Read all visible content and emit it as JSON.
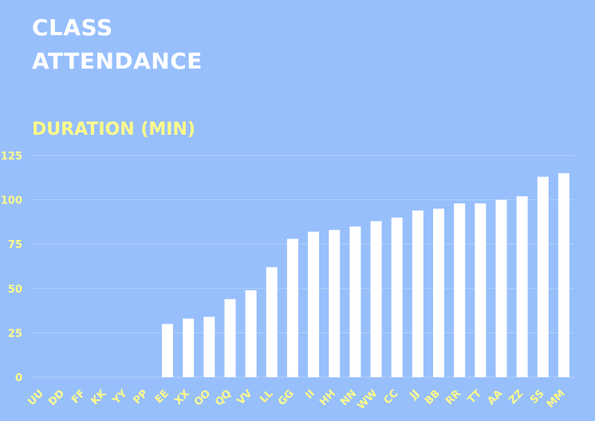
{
  "chart_data": {
    "type": "bar",
    "title_lines": [
      "CLASS",
      "ATTENDANCE"
    ],
    "ylabel": "DURATION (MIN)",
    "categories": [
      "UU",
      "DD",
      "FF",
      "KK",
      "YY",
      "PP",
      "EE",
      "XX",
      "OO",
      "QQ",
      "VV",
      "LL",
      "GG",
      "II",
      "HH",
      "NN",
      "WW",
      "CC",
      "JJ",
      "BB",
      "RR",
      "TT",
      "AA",
      "ZZ",
      "SS",
      "MM"
    ],
    "values": [
      0,
      0,
      0,
      0,
      0,
      0,
      30,
      33,
      34,
      44,
      49,
      62,
      78,
      82,
      83,
      85,
      88,
      90,
      94,
      95,
      98,
      98,
      100,
      102,
      113,
      115
    ],
    "ylim": [
      0,
      125
    ],
    "yticks": [
      0,
      25,
      50,
      75,
      100,
      125
    ],
    "grid": true,
    "colors": {
      "background": "#97bffc",
      "bar": "#ffffff",
      "title": "#ffffff",
      "label": "#fffb8a",
      "grid": "#b3d1fc"
    }
  }
}
